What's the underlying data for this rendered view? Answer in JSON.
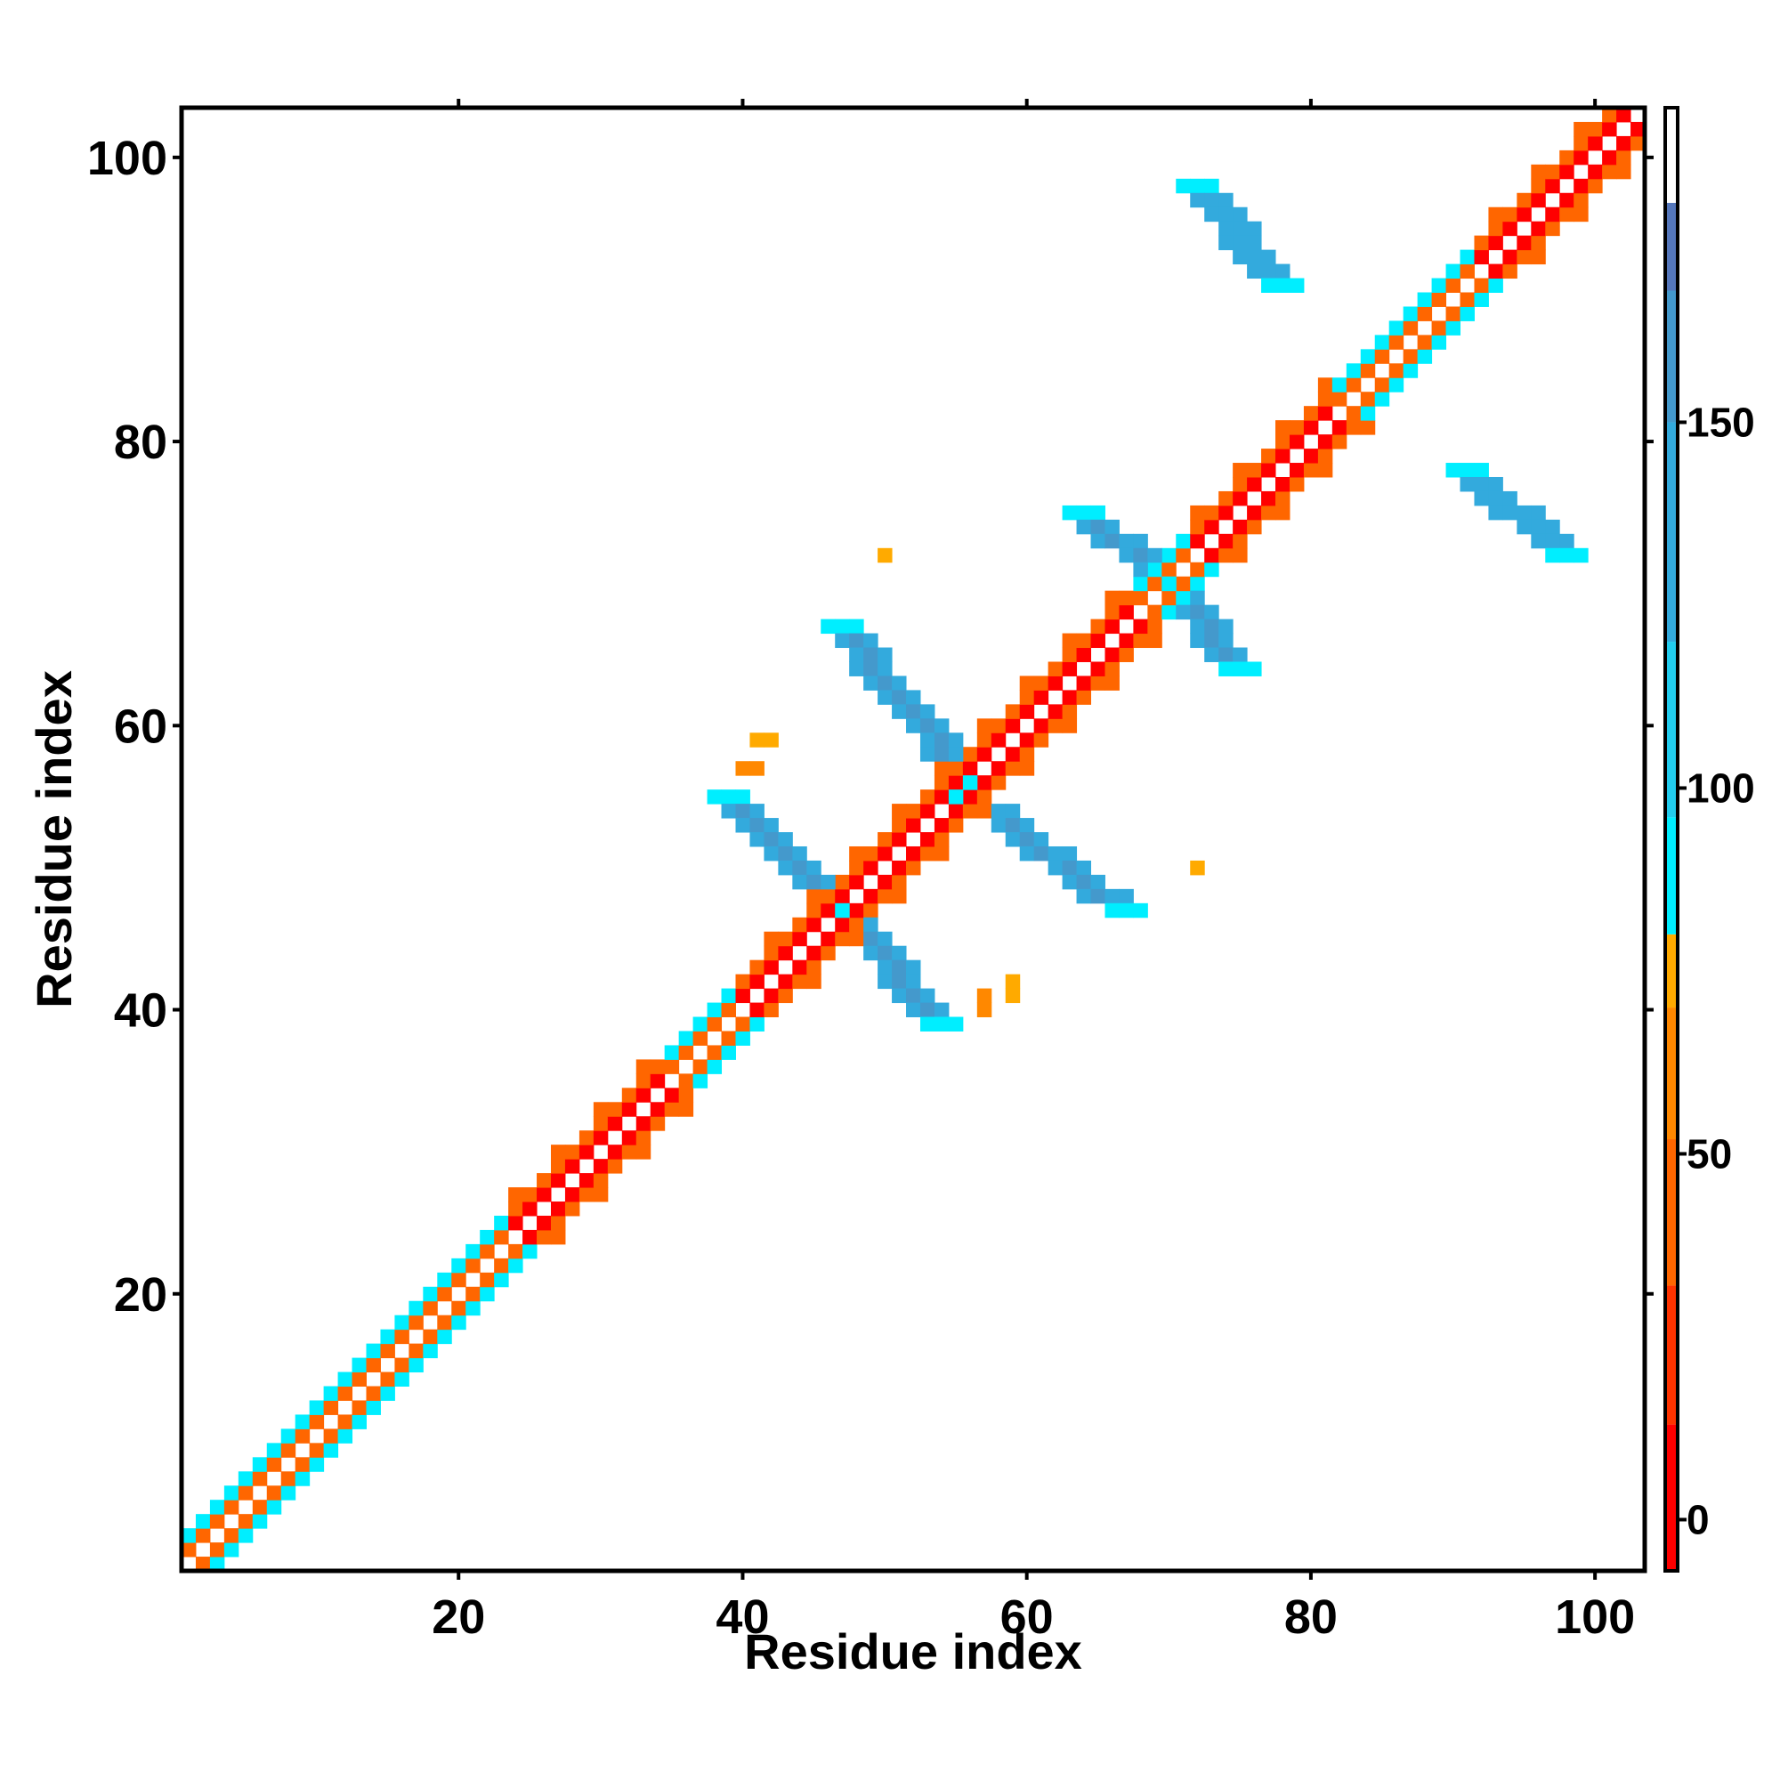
{
  "chart_data": {
    "type": "heatmap",
    "title": "",
    "xlabel": "Residue index",
    "ylabel": "Residue index",
    "xlim": [
      1,
      103
    ],
    "ylim": [
      1,
      103
    ],
    "xticks": [
      20,
      40,
      60,
      80,
      100
    ],
    "yticks": [
      20,
      40,
      60,
      80,
      100
    ],
    "colorbar": {
      "ticks": [
        0,
        50,
        100,
        150
      ],
      "range": [
        -7,
        193
      ],
      "bands": [
        {
          "from": -7,
          "to": 13,
          "color": "#ff0000"
        },
        {
          "from": 13,
          "to": 32,
          "color": "#ff3300"
        },
        {
          "from": 32,
          "to": 52,
          "color": "#ff6600"
        },
        {
          "from": 52,
          "to": 70,
          "color": "#ff8800"
        },
        {
          "from": 70,
          "to": 80,
          "color": "#ffaa00"
        },
        {
          "from": 80,
          "to": 96,
          "color": "#00eeff"
        },
        {
          "from": 96,
          "to": 120,
          "color": "#22ccee"
        },
        {
          "from": 120,
          "to": 150,
          "color": "#33aadd"
        },
        {
          "from": 150,
          "to": 168,
          "color": "#4499cc"
        },
        {
          "from": 168,
          "to": 180,
          "color": "#5577bb"
        },
        {
          "from": 180,
          "to": 193,
          "color": "#ffffff"
        }
      ]
    },
    "diagonal_bands": [
      {
        "from": 1,
        "to": 17,
        "o1": "orange",
        "o2": "cyan"
      },
      {
        "from": 17,
        "to": 24,
        "o1": "orange",
        "o2": "cyan"
      },
      {
        "from": 24,
        "to": 35,
        "o1": "red",
        "o2": "orange"
      },
      {
        "from": 35,
        "to": 40,
        "o1": "orange",
        "o2": "cyan"
      },
      {
        "from": 40,
        "to": 47,
        "o1": "red",
        "o2": "orange"
      },
      {
        "from": 47,
        "to": 56,
        "o1": "red",
        "o2": "orange"
      },
      {
        "from": 56,
        "to": 68,
        "o1": "red",
        "o2": "orange"
      },
      {
        "from": 68,
        "to": 72,
        "o1": "orange",
        "o2": "cyan"
      },
      {
        "from": 72,
        "to": 82,
        "o1": "red",
        "o2": "orange"
      },
      {
        "from": 82,
        "to": 92,
        "o1": "orange",
        "o2": "cyan"
      },
      {
        "from": 92,
        "to": 104,
        "o1": "red",
        "o2": "orange"
      }
    ],
    "off_diagonal_blobs": [
      {
        "x": [
          47,
          54
        ],
        "y": [
          39,
          47
        ],
        "value": 165
      },
      {
        "x": [
          39,
          47
        ],
        "y": [
          47,
          55
        ],
        "value": 165
      },
      {
        "x": [
          56,
          67
        ],
        "y": [
          47,
          55
        ],
        "value": 165
      },
      {
        "x": [
          47,
          56
        ],
        "y": [
          56,
          67
        ],
        "value": 165
      },
      {
        "x": [
          64,
          70
        ],
        "y": [
          70,
          75
        ],
        "value": 160
      },
      {
        "x": [
          70,
          75
        ],
        "y": [
          64,
          70
        ],
        "value": 160
      },
      {
        "x": [
          72,
          78
        ],
        "y": [
          91,
          98
        ],
        "value": 140
      },
      {
        "x": [
          91,
          98
        ],
        "y": [
          72,
          78
        ],
        "value": 140
      }
    ],
    "isolated_points": [
      {
        "x": 50,
        "y": 72,
        "value": 72
      },
      {
        "x": 72,
        "y": 50,
        "value": 72
      },
      {
        "x": 41,
        "y": 59,
        "value": 72
      },
      {
        "x": 42,
        "y": 59,
        "value": 72
      },
      {
        "x": 40,
        "y": 57,
        "value": 60
      },
      {
        "x": 41,
        "y": 57,
        "value": 60
      },
      {
        "x": 57,
        "y": 40,
        "value": 60
      },
      {
        "x": 57,
        "y": 41,
        "value": 60
      },
      {
        "x": 59,
        "y": 41,
        "value": 72
      },
      {
        "x": 59,
        "y": 42,
        "value": 72
      }
    ]
  }
}
